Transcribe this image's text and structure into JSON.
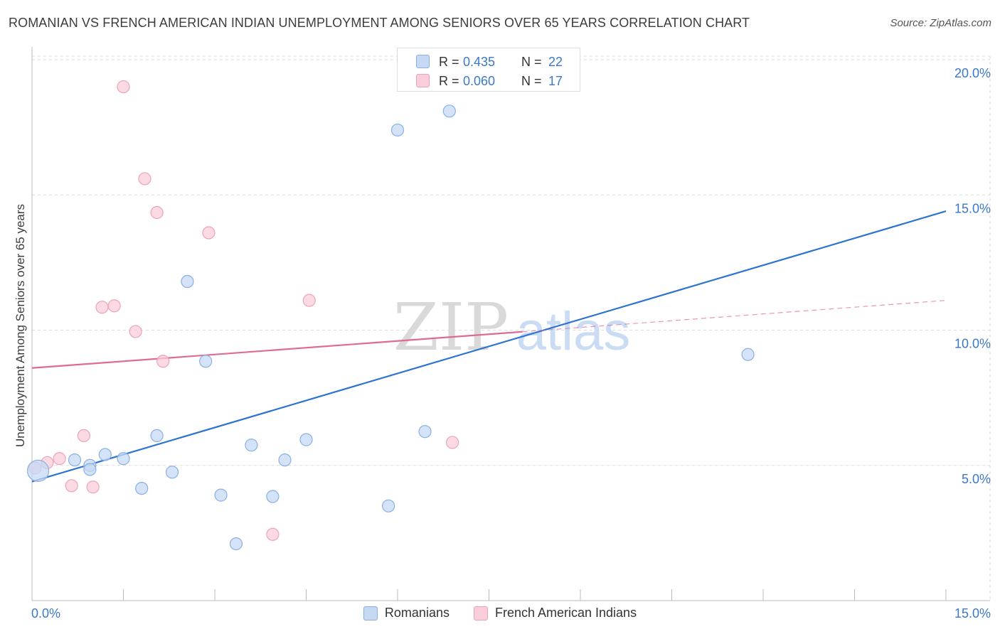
{
  "title": "ROMANIAN VS FRENCH AMERICAN INDIAN UNEMPLOYMENT AMONG SENIORS OVER 65 YEARS CORRELATION CHART",
  "source": "Source: ZipAtlas.com",
  "watermark": {
    "zip": "ZIP",
    "atlas": "atlas"
  },
  "stats": [
    {
      "r_label": "R =",
      "r_value": "0.435",
      "n_label": "N =",
      "n_value": "22"
    },
    {
      "r_label": "R =",
      "r_value": "0.060",
      "n_label": "N =",
      "n_value": "17"
    }
  ],
  "colors": {
    "blue_fill": "#c5d9f4",
    "blue_stroke": "#8ab0e0",
    "blue_line": "#2d74d0",
    "pink_fill": "#f9cdd9",
    "pink_stroke": "#eca3b8",
    "pink_line": "#e06a92",
    "tick_text": "#3a78c9",
    "grid": "#dcdcdc"
  },
  "chart_data": {
    "type": "scatter",
    "title": "ROMANIAN VS FRENCH AMERICAN INDIAN UNEMPLOYMENT AMONG SENIORS OVER 65 YEARS CORRELATION CHART",
    "xlabel": "",
    "ylabel": "Unemployment Among Seniors over 65 years",
    "xlim": [
      0,
      15
    ],
    "ylim": [
      0,
      20.5
    ],
    "x_tick_labels": [
      "0.0%",
      "15.0%"
    ],
    "y_ticks": [
      5,
      10,
      15,
      20
    ],
    "y_tick_labels": [
      "5.0%",
      "10.0%",
      "15.0%",
      "20.0%"
    ],
    "grid": true,
    "legend_position": "bottom",
    "series": [
      {
        "name": "Romanians",
        "color": "blue",
        "points": [
          {
            "x": 0.1,
            "y": 4.8,
            "big": true
          },
          {
            "x": 0.7,
            "y": 5.2
          },
          {
            "x": 0.95,
            "y": 5.0
          },
          {
            "x": 0.95,
            "y": 4.85
          },
          {
            "x": 1.2,
            "y": 5.4
          },
          {
            "x": 1.5,
            "y": 5.25
          },
          {
            "x": 1.8,
            "y": 4.15
          },
          {
            "x": 2.05,
            "y": 6.1
          },
          {
            "x": 2.3,
            "y": 4.75
          },
          {
            "x": 2.55,
            "y": 11.8
          },
          {
            "x": 2.85,
            "y": 8.85
          },
          {
            "x": 3.1,
            "y": 3.9
          },
          {
            "x": 3.35,
            "y": 2.1
          },
          {
            "x": 3.6,
            "y": 5.75
          },
          {
            "x": 3.95,
            "y": 3.85
          },
          {
            "x": 4.15,
            "y": 5.2
          },
          {
            "x": 4.5,
            "y": 5.95
          },
          {
            "x": 5.85,
            "y": 3.5
          },
          {
            "x": 6.0,
            "y": 17.4
          },
          {
            "x": 6.45,
            "y": 6.25
          },
          {
            "x": 6.85,
            "y": 18.1
          },
          {
            "x": 11.75,
            "y": 9.1
          }
        ],
        "trend": {
          "x0": 0,
          "y0": 4.4,
          "x1": 15,
          "y1": 14.4,
          "solid_until": 15
        }
      },
      {
        "name": "French American Indians",
        "color": "pink",
        "points": [
          {
            "x": 0.05,
            "y": 4.9
          },
          {
            "x": 0.25,
            "y": 5.1
          },
          {
            "x": 0.45,
            "y": 5.25
          },
          {
            "x": 0.65,
            "y": 4.25
          },
          {
            "x": 0.85,
            "y": 6.1
          },
          {
            "x": 1.0,
            "y": 4.2
          },
          {
            "x": 1.15,
            "y": 10.85
          },
          {
            "x": 1.35,
            "y": 10.9
          },
          {
            "x": 1.5,
            "y": 19.0
          },
          {
            "x": 1.7,
            "y": 9.95
          },
          {
            "x": 1.85,
            "y": 15.6
          },
          {
            "x": 2.05,
            "y": 14.35
          },
          {
            "x": 2.15,
            "y": 8.85
          },
          {
            "x": 2.9,
            "y": 13.6
          },
          {
            "x": 3.95,
            "y": 2.45
          },
          {
            "x": 4.55,
            "y": 11.1
          },
          {
            "x": 6.9,
            "y": 5.85
          }
        ],
        "trend": {
          "x0": 0,
          "y0": 8.6,
          "x1": 15,
          "y1": 11.1,
          "solid_until": 8.05
        }
      }
    ]
  }
}
